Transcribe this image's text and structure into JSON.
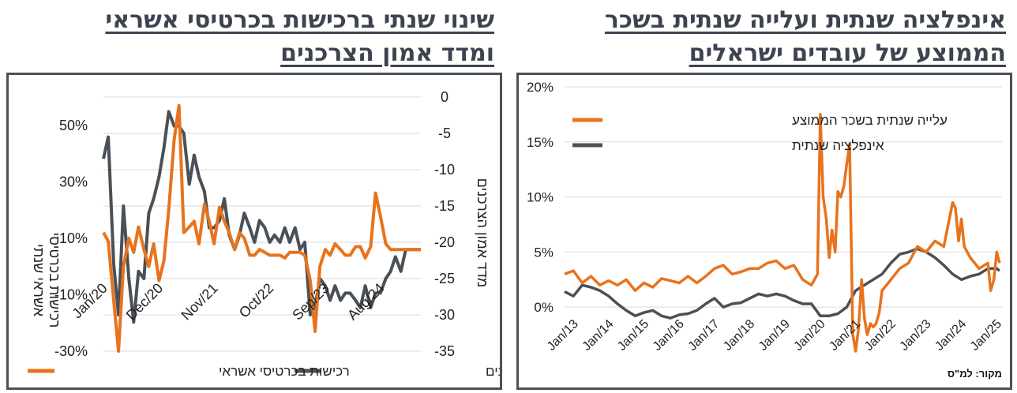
{
  "left_panel": {
    "title_line1": "שינוי שנתי ברכישות בכרטיסי אשראי",
    "title_line2": "ומדד אמון הצרכנים",
    "left_axis_label_line1": "רכישות בכרטיסי",
    "left_axis_label_line2": "אשראי שנתי",
    "right_axis_label": "מדד אמון הצרכנים"
  },
  "right_panel": {
    "title_line1": "אינפלציה שנתית ועלייה שנתית בשכר",
    "title_line2": "הממוצע של עובדים ישראלים",
    "source": "מקור: למ\"ס"
  },
  "colors": {
    "orange": "#e8731c",
    "dark": "#4a5057",
    "grid": "#d9d9d9",
    "frame": "#4a505c"
  },
  "chart_data": [
    {
      "type": "line",
      "title": "שינוי שנתי ברכישות בכרטיסי אשראי ומדד אמון הצרכנים",
      "x_tick_labels": [
        "Jan/20",
        "Dec/20",
        "Nov/21",
        "Oct/22",
        "Sep/23",
        "Aug/24"
      ],
      "y_left": {
        "ticks": [
          "50%",
          "30%",
          "10%",
          "-10%",
          "-30%"
        ],
        "range": [
          -30,
          60
        ]
      },
      "y_right": {
        "ticks": [
          "0",
          "-5",
          "-10",
          "-15",
          "-20",
          "-25",
          "-30",
          "-35"
        ],
        "range": [
          -35,
          0
        ]
      },
      "legend": [
        "רכישות בכרטיסי אשראי",
        "מדד אמון הצרכנים"
      ],
      "legend_position": "bottom",
      "series": [
        {
          "name": "רכישות בכרטיסי אשראי",
          "axis": "left",
          "color": "#e8731c",
          "x": [
            2020.0,
            2020.08,
            2020.17,
            2020.25,
            2020.33,
            2020.42,
            2020.5,
            2020.58,
            2020.67,
            2020.75,
            2020.83,
            2020.92,
            2021.0,
            2021.08,
            2021.17,
            2021.25,
            2021.33,
            2021.42,
            2021.5,
            2021.58,
            2021.67,
            2021.75,
            2021.83,
            2021.92,
            2022.0,
            2022.08,
            2022.17,
            2022.25,
            2022.33,
            2022.42,
            2022.5,
            2022.58,
            2022.67,
            2022.75,
            2022.83,
            2022.92,
            2023.0,
            2023.08,
            2023.17,
            2023.25,
            2023.33,
            2023.42,
            2023.5,
            2023.58,
            2023.67,
            2023.75,
            2023.83,
            2023.92,
            2024.0,
            2024.08,
            2024.17,
            2024.25,
            2024.33,
            2024.42,
            2024.5,
            2024.58,
            2024.67,
            2024.75,
            2024.83,
            2024.92,
            2025.0,
            2025.08,
            2025.17,
            2025.25
          ],
          "values": [
            12,
            9,
            -12,
            -30,
            0,
            10,
            5,
            14,
            6,
            0,
            8,
            -5,
            2,
            20,
            45,
            57,
            12,
            14,
            16,
            8,
            22,
            16,
            8,
            21,
            16,
            12,
            6,
            12,
            10,
            4,
            4,
            6,
            5,
            4,
            4,
            4,
            3,
            5,
            5,
            5,
            4,
            -5,
            -23,
            0,
            6,
            4,
            8,
            6,
            4,
            4,
            7,
            7,
            3,
            7,
            26,
            18,
            8,
            6,
            6,
            6,
            6,
            6,
            6,
            6
          ]
        },
        {
          "name": "מדד אמון הצרכנים",
          "axis": "right",
          "color": "#4a5057",
          "x": [
            2020.0,
            2020.08,
            2020.17,
            2020.25,
            2020.33,
            2020.42,
            2020.5,
            2020.58,
            2020.67,
            2020.75,
            2020.83,
            2020.92,
            2021.0,
            2021.08,
            2021.17,
            2021.25,
            2021.33,
            2021.42,
            2021.5,
            2021.58,
            2021.67,
            2021.75,
            2021.83,
            2021.92,
            2022.0,
            2022.08,
            2022.17,
            2022.25,
            2022.33,
            2022.42,
            2022.5,
            2022.58,
            2022.67,
            2022.75,
            2022.83,
            2022.92,
            2023.0,
            2023.08,
            2023.17,
            2023.25,
            2023.33,
            2023.42,
            2023.5,
            2023.58,
            2023.67,
            2023.75,
            2023.83,
            2023.92,
            2024.0,
            2024.08,
            2024.17,
            2024.25,
            2024.33,
            2024.42,
            2024.5,
            2024.58,
            2024.67,
            2024.75,
            2024.83,
            2024.92,
            2025.0,
            2025.08,
            2025.17,
            2025.25
          ],
          "values": [
            -8.5,
            -5.5,
            -23,
            -30,
            -15,
            -25,
            -31,
            -24,
            -25,
            -16,
            -14,
            -11,
            -7,
            -2,
            -4,
            -4,
            -5,
            -12,
            -8,
            -11,
            -13,
            -18,
            -18,
            -17,
            -14,
            -19,
            -21,
            -19,
            -16,
            -18,
            -20,
            -17,
            -18,
            -20,
            -19,
            -20,
            -18,
            -20,
            -18,
            -21,
            -20,
            -30,
            -29,
            -25,
            -26,
            -28,
            -26,
            -28,
            -27,
            -27,
            -28,
            -29,
            -26,
            -29,
            -27,
            -27,
            -25,
            -24,
            -22,
            -24,
            -21,
            -21,
            -21,
            -21
          ]
        }
      ]
    },
    {
      "type": "line",
      "title": "אינפלציה שנתית ועלייה שנתית בשכר הממוצע של עובדים ישראלים",
      "x_tick_labels": [
        "Jan/13",
        "Jan/14",
        "Jan/15",
        "Jan/16",
        "Jan/17",
        "Jan/18",
        "Jan/19",
        "Jan/20",
        "Jan/21",
        "Jan/22",
        "Jan/23",
        "Jan/24",
        "Jan/25"
      ],
      "y": {
        "ticks": [
          "20%",
          "15%",
          "10%",
          "5%",
          "0%"
        ],
        "range": [
          -4,
          20
        ]
      },
      "legend": [
        "עלייה שנתית בשכר הממוצע",
        "אינפלציה שנתית"
      ],
      "legend_position": "top-left",
      "series": [
        {
          "name": "עלייה שנתית בשכר הממוצע",
          "color": "#e8731c",
          "x": [
            2013.0,
            2013.25,
            2013.5,
            2013.75,
            2014.0,
            2014.25,
            2014.5,
            2014.75,
            2015.0,
            2015.25,
            2015.5,
            2015.75,
            2016.0,
            2016.25,
            2016.5,
            2016.75,
            2017.0,
            2017.25,
            2017.5,
            2017.75,
            2018.0,
            2018.25,
            2018.5,
            2018.75,
            2019.0,
            2019.25,
            2019.5,
            2019.75,
            2020.0,
            2020.17,
            2020.25,
            2020.33,
            2020.42,
            2020.5,
            2020.58,
            2020.67,
            2020.75,
            2020.83,
            2020.92,
            2021.0,
            2021.08,
            2021.17,
            2021.25,
            2021.33,
            2021.42,
            2021.5,
            2021.58,
            2021.67,
            2021.75,
            2021.83,
            2021.92,
            2022.0,
            2022.25,
            2022.5,
            2022.75,
            2023.0,
            2023.25,
            2023.5,
            2023.75,
            2024.0,
            2024.08,
            2024.17,
            2024.25,
            2024.33,
            2024.5,
            2024.75,
            2025.0,
            2025.08,
            2025.17,
            2025.25,
            2025.33
          ],
          "values": [
            3.0,
            3.3,
            2.2,
            2.8,
            2.0,
            2.4,
            2.0,
            2.5,
            1.5,
            2.2,
            1.8,
            2.6,
            2.4,
            2.2,
            2.8,
            2.2,
            2.8,
            3.5,
            3.8,
            3.0,
            3.2,
            3.5,
            3.5,
            4.0,
            4.2,
            3.5,
            3.8,
            2.5,
            2.0,
            3.0,
            17.5,
            10.0,
            8.0,
            4.5,
            7.0,
            5.0,
            10.5,
            10.0,
            11.0,
            13.0,
            14.8,
            -2.5,
            -4.0,
            -2.0,
            2.5,
            -1.0,
            -2.5,
            -1.5,
            -1.8,
            -1.5,
            -0.5,
            1.5,
            2.5,
            3.5,
            4.0,
            5.5,
            5.0,
            6.0,
            5.5,
            9.5,
            9.0,
            6.0,
            8.0,
            5.5,
            4.5,
            3.5,
            4.0,
            1.5,
            2.5,
            5.0,
            4.0
          ]
        },
        {
          "name": "אינפלציה שנתית",
          "color": "#4a5057",
          "x": [
            2013.0,
            2013.25,
            2013.5,
            2013.75,
            2014.0,
            2014.25,
            2014.5,
            2014.75,
            2015.0,
            2015.25,
            2015.5,
            2015.75,
            2016.0,
            2016.25,
            2016.5,
            2016.75,
            2017.0,
            2017.25,
            2017.5,
            2017.75,
            2018.0,
            2018.25,
            2018.5,
            2018.75,
            2019.0,
            2019.25,
            2019.5,
            2019.75,
            2020.0,
            2020.25,
            2020.5,
            2020.75,
            2021.0,
            2021.25,
            2021.5,
            2021.75,
            2022.0,
            2022.25,
            2022.5,
            2022.75,
            2023.0,
            2023.25,
            2023.5,
            2023.75,
            2024.0,
            2024.25,
            2024.5,
            2024.75,
            2025.0,
            2025.25,
            2025.33
          ],
          "values": [
            1.4,
            1.0,
            2.0,
            1.8,
            1.5,
            1.0,
            0.3,
            -0.3,
            -0.8,
            -0.5,
            -0.3,
            -0.8,
            -1.0,
            -0.7,
            -0.6,
            -0.3,
            0.3,
            0.8,
            0.0,
            0.3,
            0.4,
            0.8,
            1.2,
            1.0,
            1.2,
            1.0,
            0.6,
            0.3,
            0.3,
            -0.8,
            -0.8,
            -0.6,
            0.0,
            1.5,
            2.0,
            2.5,
            3.0,
            4.0,
            4.8,
            5.0,
            5.3,
            5.0,
            4.5,
            3.8,
            3.0,
            2.5,
            2.8,
            3.0,
            3.5,
            3.5,
            3.3
          ]
        }
      ]
    }
  ]
}
